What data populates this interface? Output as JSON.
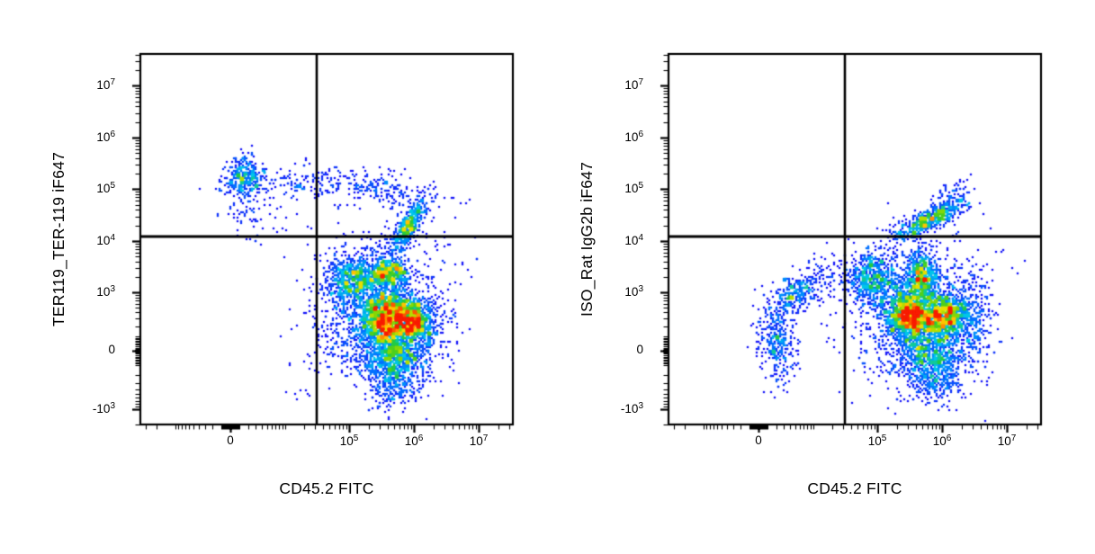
{
  "figure": {
    "background": "#ffffff",
    "description": "Two flow cytometry pseudocolor density dot plots with quadrant gates"
  },
  "chart_data": [
    {
      "type": "scatter",
      "subtype": "flow-pseudocolor-density",
      "xlabel": "CD45.2 FITC",
      "ylabel": "TER119_TER-119 iF647",
      "x_scale": {
        "type": "logicle",
        "range": [
          -36000,
          33000000
        ]
      },
      "y_scale": {
        "type": "logicle",
        "range": [
          -2100,
          40000000
        ]
      },
      "x_ticks": [
        {
          "label": "0",
          "sup": "",
          "value": 0
        },
        {
          "label": "10",
          "sup": "5",
          "value": 100000
        },
        {
          "label": "10",
          "sup": "6",
          "value": 1000000
        },
        {
          "label": "10",
          "sup": "7",
          "value": 10000000
        }
      ],
      "y_ticks": [
        {
          "label": "10",
          "sup": "7",
          "value": 10000000
        },
        {
          "label": "10",
          "sup": "6",
          "value": 1000000
        },
        {
          "label": "10",
          "sup": "5",
          "value": 100000
        },
        {
          "label": "10",
          "sup": "4",
          "value": 10000
        },
        {
          "label": "10",
          "sup": "3",
          "value": 1000
        },
        {
          "label": "0",
          "sup": "",
          "value": 0
        },
        {
          "label": "-10",
          "sup": "3",
          "value": -1000
        }
      ],
      "quadrant_gate": {
        "x": 32000,
        "y": 12000
      },
      "populations": [
        {
          "name": "ter119-pos-cd45-neg-blob",
          "x": 1400,
          "y": 170000,
          "sx": 0.16,
          "sy": 0.2,
          "rho": 0,
          "n": 350
        },
        {
          "name": "ter119-pos-right-tail",
          "x": 16000,
          "y": 124000,
          "sx": 0.42,
          "sy": 0.14,
          "rho": 0,
          "n": 110
        },
        {
          "name": "ter119-pos-lower-strays",
          "x": 3000,
          "y": 30000,
          "sx": 0.28,
          "sy": 0.3,
          "rho": 0,
          "n": 70
        },
        {
          "name": "upper-right-band",
          "x": 280000,
          "y": 100000,
          "sx": 0.5,
          "sy": 0.21,
          "rho": -0.45,
          "n": 230
        },
        {
          "name": "gate-crossing-arm",
          "x": 800000,
          "y": 19000,
          "sx": 0.15,
          "sy": 0.27,
          "rho": 0.75,
          "n": 430
        },
        {
          "name": "mid-green-left-lobe",
          "x": 125000,
          "y": 1850,
          "sx": 0.23,
          "sy": 0.24,
          "rho": 0,
          "n": 700
        },
        {
          "name": "orange-spot-upper",
          "x": 420000,
          "y": 2460,
          "sx": 0.14,
          "sy": 0.15,
          "rho": 0,
          "n": 450
        },
        {
          "name": "red-core-left",
          "x": 360000,
          "y": 290,
          "sx": 0.19,
          "sy": 0.28,
          "rho": 0,
          "n": 1450
        },
        {
          "name": "red-core-right",
          "x": 940000,
          "y": 260,
          "sx": 0.17,
          "sy": 0.23,
          "rho": 0,
          "n": 1000
        },
        {
          "name": "lower-green-spread",
          "x": 530000,
          "y": -60,
          "sx": 0.25,
          "sy": 0.26,
          "rho": 0,
          "n": 750
        },
        {
          "name": "blue-halo",
          "x": 450000,
          "y": 360,
          "sx": 0.5,
          "sy": 0.8,
          "rho": 0,
          "n": 850
        },
        {
          "name": "left-blue-arm",
          "x": 91000,
          "y": 440,
          "sx": 0.26,
          "sy": 0.55,
          "rho": 0,
          "n": 300
        },
        {
          "name": "bottom-tail",
          "x": 530000,
          "y": -360,
          "sx": 0.21,
          "sy": 0.2,
          "rho": 0,
          "n": 160
        },
        {
          "name": "lower-left-strays",
          "x": 21000,
          "y": 0,
          "sx": 0.22,
          "sy": 0.6,
          "rho": 0,
          "n": 22
        }
      ]
    },
    {
      "type": "scatter",
      "subtype": "flow-pseudocolor-density",
      "xlabel": "CD45.2 FITC",
      "ylabel": "ISO_Rat IgG2b iF647",
      "x_scale": {
        "type": "logicle",
        "range": [
          -36000,
          33000000
        ]
      },
      "y_scale": {
        "type": "logicle",
        "range": [
          -2100,
          40000000
        ]
      },
      "x_ticks": [
        {
          "label": "0",
          "sup": "",
          "value": 0
        },
        {
          "label": "10",
          "sup": "5",
          "value": 100000
        },
        {
          "label": "10",
          "sup": "6",
          "value": 1000000
        },
        {
          "label": "10",
          "sup": "7",
          "value": 10000000
        }
      ],
      "y_ticks": [
        {
          "label": "10",
          "sup": "7",
          "value": 10000000
        },
        {
          "label": "10",
          "sup": "6",
          "value": 1000000
        },
        {
          "label": "10",
          "sup": "5",
          "value": 100000
        },
        {
          "label": "10",
          "sup": "4",
          "value": 10000
        },
        {
          "label": "10",
          "sup": "3",
          "value": 1000
        },
        {
          "label": "0",
          "sup": "",
          "value": 0
        },
        {
          "label": "-10",
          "sup": "3",
          "value": -1000
        }
      ],
      "quadrant_gate": {
        "x": 32000,
        "y": 12000
      },
      "populations": [
        {
          "name": "cd45-neg-arc-low",
          "x": 1900,
          "y": 130,
          "sx": 0.14,
          "sy": 0.35,
          "rho": 0,
          "n": 260
        },
        {
          "name": "cd45-neg-arc-up",
          "x": 5200,
          "y": 1000,
          "sx": 0.2,
          "sy": 0.21,
          "rho": 0.55,
          "n": 270
        },
        {
          "name": "cd45-neg-arc-tail",
          "x": 2900,
          "y": -60,
          "sx": 0.12,
          "sy": 0.26,
          "rho": 0,
          "n": 80
        },
        {
          "name": "mid-sparse-bridge",
          "x": 14500,
          "y": 1850,
          "sx": 0.17,
          "sy": 0.26,
          "rho": 0,
          "n": 60
        },
        {
          "name": "gate-crossing-arm",
          "x": 600000,
          "y": 25000,
          "sx": 0.28,
          "sy": 0.21,
          "rho": 0.8,
          "n": 560
        },
        {
          "name": "arm-top-fringe",
          "x": 1500000,
          "y": 83000,
          "sx": 0.14,
          "sy": 0.21,
          "rho": 0,
          "n": 60
        },
        {
          "name": "mid-green-left-lobe",
          "x": 85000,
          "y": 1850,
          "sx": 0.23,
          "sy": 0.25,
          "rho": 0,
          "n": 600
        },
        {
          "name": "yellow-streak",
          "x": 490000,
          "y": 1850,
          "sx": 0.13,
          "sy": 0.25,
          "rho": 0,
          "n": 620
        },
        {
          "name": "red-core-left",
          "x": 306000,
          "y": 336,
          "sx": 0.19,
          "sy": 0.25,
          "rho": 0,
          "n": 1350
        },
        {
          "name": "red-core-right",
          "x": 1030000,
          "y": 336,
          "sx": 0.19,
          "sy": 0.23,
          "rho": 0,
          "n": 1050
        },
        {
          "name": "lower-green-spread",
          "x": 680000,
          "y": -60,
          "sx": 0.25,
          "sy": 0.25,
          "rho": 0,
          "n": 700
        },
        {
          "name": "blue-halo",
          "x": 420000,
          "y": 400,
          "sx": 0.55,
          "sy": 0.8,
          "rho": 0,
          "n": 850
        },
        {
          "name": "right-edge-fringe",
          "x": 2870000,
          "y": 300,
          "sx": 0.17,
          "sy": 0.55,
          "rho": 0,
          "n": 260
        },
        {
          "name": "bottom-tail",
          "x": 800000,
          "y": -360,
          "sx": 0.21,
          "sy": 0.18,
          "rho": 0,
          "n": 140
        }
      ]
    }
  ],
  "style": {
    "colormap": [
      {
        "t": 0.0,
        "c": "#1A1AF8"
      },
      {
        "t": 0.22,
        "c": "#0080FF"
      },
      {
        "t": 0.38,
        "c": "#00C8E8"
      },
      {
        "t": 0.52,
        "c": "#2BCB2B"
      },
      {
        "t": 0.66,
        "c": "#A0DC00"
      },
      {
        "t": 0.78,
        "c": "#FFE000"
      },
      {
        "t": 0.89,
        "c": "#FF8000"
      },
      {
        "t": 1.0,
        "c": "#F81E00"
      }
    ],
    "density_max": 16,
    "point_size": 2.3,
    "line_color": "#000000",
    "text_color": "#000000"
  }
}
